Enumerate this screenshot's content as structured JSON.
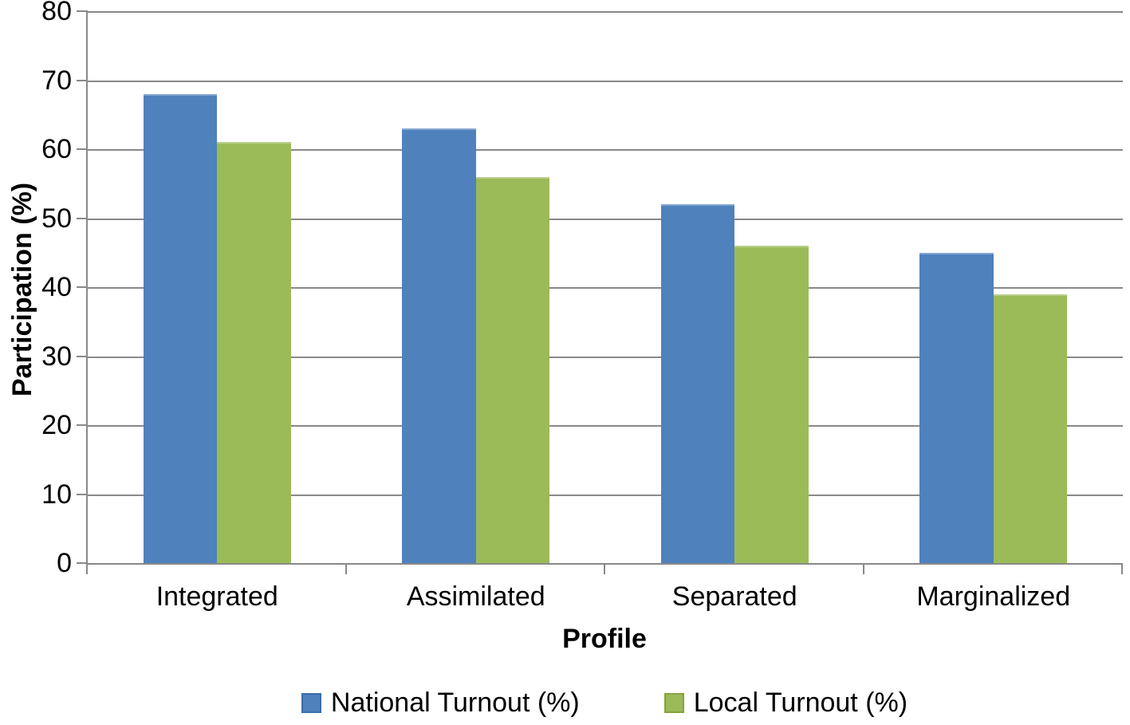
{
  "chart_data": {
    "type": "bar",
    "categories": [
      "Integrated",
      "Assimilated",
      "Separated",
      "Marginalized"
    ],
    "series": [
      {
        "name": "National Turnout (%)",
        "values": [
          68,
          63,
          52,
          45
        ],
        "color": "#4F81BD",
        "border_color": "#3A6EA5"
      },
      {
        "name": "Local Turnout (%)",
        "values": [
          61,
          56,
          46,
          39
        ],
        "color": "#9BBB59",
        "border_color": "#84A43B"
      }
    ],
    "xlabel": "Profile",
    "ylabel": "Participation (%)",
    "ylim": [
      0,
      80
    ],
    "yticks": [
      0,
      10,
      20,
      30,
      40,
      50,
      60,
      70,
      80
    ],
    "grid": true,
    "legend_position": "bottom",
    "gridline_color": "#898989",
    "axis_color": "#898989",
    "text_color": "#000000",
    "background_color": "#FFFFFF"
  }
}
